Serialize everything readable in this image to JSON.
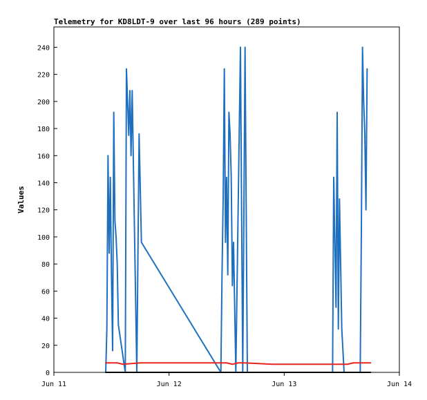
{
  "chart_data": {
    "type": "line",
    "title": "Telemetry for KD8LDT-9 over last 96 hours (289 points)",
    "xlabel": "",
    "ylabel": "Values",
    "xlim": [
      "Jun 11",
      "Jun 14"
    ],
    "ylim": [
      0,
      255
    ],
    "grid": false,
    "legend": "none",
    "x_ticks": [
      "Jun 11",
      "Jun 12",
      "Jun 13",
      "Jun 14"
    ],
    "y_ticks": [
      0,
      20,
      40,
      60,
      80,
      100,
      120,
      140,
      160,
      180,
      200,
      220,
      240
    ],
    "colors": {
      "background": "#ffffff",
      "frame": "#000000",
      "blue_series": "#1f6fbf",
      "red_series": "#e8231f",
      "black_series": "#000000"
    },
    "series": [
      {
        "color": "#1f6fbf",
        "x_days": [
          0.45,
          0.46,
          0.47,
          0.48,
          0.49,
          0.5,
          0.51,
          0.52,
          0.53,
          0.54,
          0.55,
          0.56,
          0.62,
          0.63,
          0.64,
          0.65,
          0.66,
          0.67,
          0.68,
          0.7,
          0.72,
          0.74,
          0.76,
          1.45,
          1.46,
          1.47,
          1.48,
          1.49,
          1.5,
          1.51,
          1.52,
          1.53,
          1.54,
          1.55,
          1.56,
          1.57,
          1.58,
          1.62,
          1.64,
          1.66,
          1.68,
          1.7,
          1.72,
          1.74,
          1.76,
          2.42,
          2.43,
          2.44,
          2.45,
          2.46,
          2.47,
          2.48,
          2.5,
          2.52,
          2.54,
          2.56,
          2.58,
          2.6,
          2.66,
          2.67,
          2.68,
          2.69,
          2.7,
          2.71,
          2.72
        ],
        "values": [
          0,
          32,
          160,
          88,
          144,
          72,
          16,
          192,
          112,
          100,
          80,
          35,
          0,
          224,
          200,
          175,
          208,
          160,
          208,
          104,
          0,
          176,
          96,
          0,
          72,
          128,
          224,
          96,
          144,
          72,
          192,
          176,
          144,
          64,
          96,
          48,
          0,
          240,
          0,
          240,
          0,
          0,
          0,
          0,
          0,
          0,
          144,
          96,
          48,
          192,
          32,
          128,
          32,
          0,
          0,
          0,
          0,
          0,
          0,
          104,
          240,
          200,
          176,
          120,
          224
        ]
      },
      {
        "color": "#e8231f",
        "x_days": [
          0.45,
          0.55,
          0.6,
          0.75,
          1.0,
          1.5,
          1.55,
          1.6,
          1.65,
          1.9,
          2.0,
          2.3,
          2.45,
          2.55,
          2.6,
          2.7,
          2.75
        ],
        "values": [
          7,
          7,
          6,
          7,
          7,
          7,
          6,
          7,
          7,
          6,
          6,
          6,
          6,
          6,
          7,
          7,
          7
        ]
      },
      {
        "color": "#000000",
        "x_days": [
          0.45,
          2.75
        ],
        "values": [
          0,
          0
        ]
      }
    ]
  }
}
